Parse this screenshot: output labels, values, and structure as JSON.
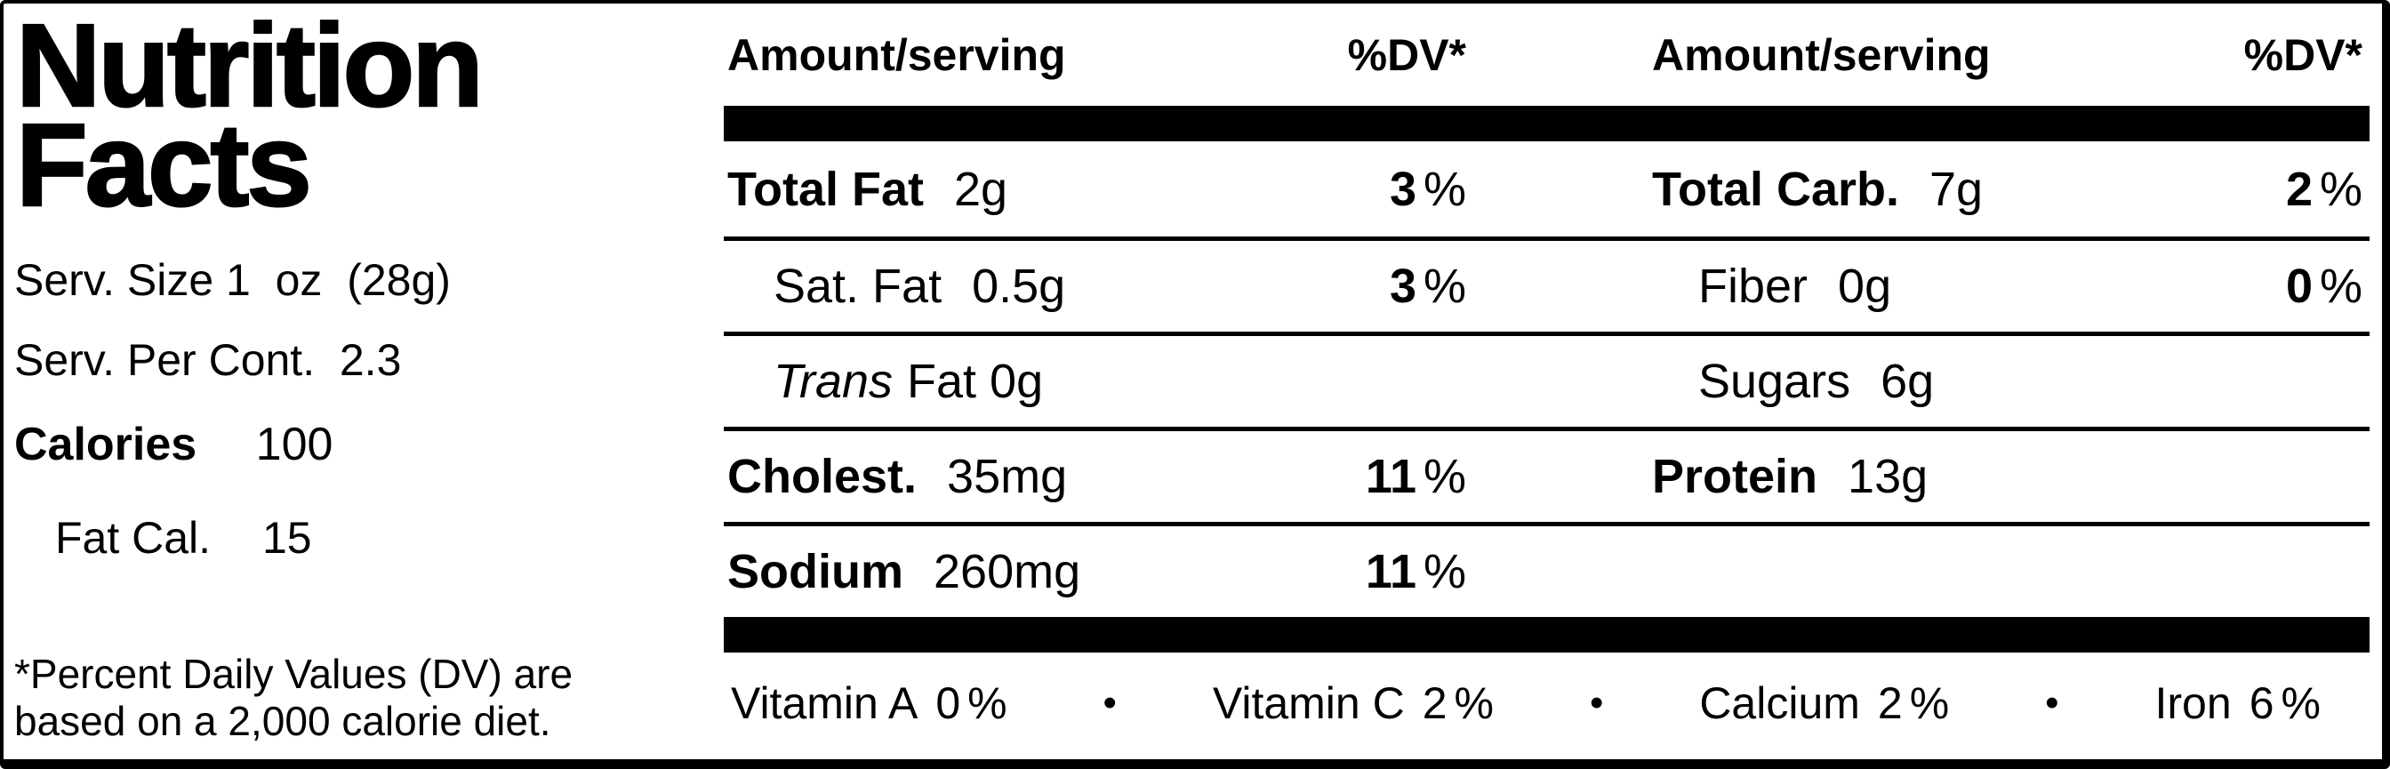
{
  "left_panel": {
    "title_line1": "Nutrition",
    "title_line2": "Facts",
    "serving_size": "Serv. Size 1  oz  (28g)",
    "servings_per_container": "Serv. Per Cont.  2.3",
    "calories_label": "Calories",
    "calories_value": "100",
    "fat_calories_label": "Fat Cal.",
    "fat_calories_value": "15",
    "footnote": "*Percent Daily Values (DV) are based on a 2,000 calorie diet."
  },
  "table": {
    "amount_header": "Amount/serving",
    "dv_header": "%DV*",
    "pct": "%",
    "bullet": "•",
    "rows": [
      {
        "left": {
          "label": "Total Fat",
          "value": "2g",
          "dv": "3"
        },
        "right": {
          "label": "Total Carb.",
          "value": "7g",
          "dv": "2"
        }
      },
      {
        "left": {
          "label": "Sat. Fat",
          "value": "0.5g",
          "dv": "3"
        },
        "right": {
          "label": "Fiber",
          "value": "0g",
          "dv": "0"
        }
      },
      {
        "left": {
          "label_italic": "Trans",
          "label_rest": "Fat 0g"
        },
        "right": {
          "label": "Sugars",
          "value": "6g"
        }
      },
      {
        "left": {
          "label": "Cholest.",
          "value": "35mg",
          "dv": "11"
        },
        "right": {
          "label": "Protein",
          "value": "13g"
        }
      },
      {
        "left": {
          "label": "Sodium",
          "value": "260mg",
          "dv": "11"
        }
      }
    ],
    "vitamins": [
      {
        "name": "Vitamin A",
        "value": "0"
      },
      {
        "name": "Vitamin C",
        "value": "2"
      },
      {
        "name": "Calcium",
        "value": "2"
      },
      {
        "name": "Iron",
        "value": "6"
      }
    ]
  }
}
